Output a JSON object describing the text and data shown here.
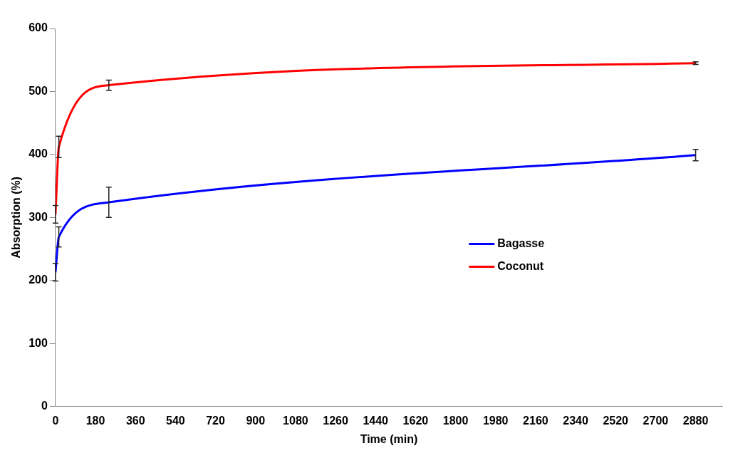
{
  "chart_data": {
    "type": "line",
    "xlabel": "Time (min)",
    "ylabel": "Absorption (%)",
    "xlim": [
      0,
      3000
    ],
    "xticks": [
      0,
      180,
      360,
      540,
      720,
      900,
      1080,
      1260,
      1440,
      1620,
      1800,
      1980,
      2160,
      2340,
      2520,
      2700,
      2880
    ],
    "ylim": [
      0,
      600
    ],
    "yticks": [
      0,
      100,
      200,
      300,
      400,
      500,
      600
    ],
    "grid": false,
    "legend": "right",
    "marker": "none",
    "line_style": "solid",
    "x": [
      0,
      15,
      240,
      2880
    ],
    "series": [
      {
        "name": "Bagasse",
        "color": "#0000ff",
        "values": [
          213,
          269,
          324,
          399
        ],
        "errors": [
          14,
          16,
          24,
          9
        ]
      },
      {
        "name": "Coconut",
        "color": "#ff0000",
        "values": [
          305,
          412,
          510,
          545
        ],
        "errors": [
          14,
          17,
          8,
          2
        ]
      }
    ]
  }
}
